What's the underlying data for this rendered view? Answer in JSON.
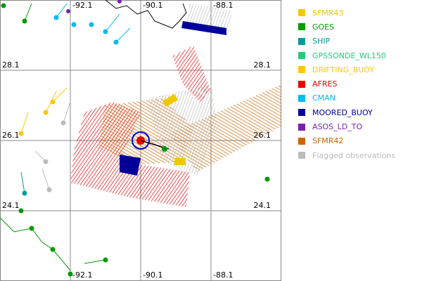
{
  "map": {
    "lat_labels": [
      "28.1",
      "26.1",
      "24.1"
    ],
    "lon_labels_top": [
      "-92.1",
      "-90.1",
      "-88.1"
    ],
    "lon_labels_bottom": [
      "-92.1",
      "-90.1",
      "-88.1"
    ],
    "legend": [
      {
        "name": "SFMR43",
        "color": "#f0c800"
      },
      {
        "name": "GOES",
        "color": "#009900"
      },
      {
        "name": "SHIP",
        "color": "#009999"
      },
      {
        "name": "GPSSONDE_WL150",
        "color": "#22cc77"
      },
      {
        "name": "DRIFTING_BUOY",
        "color": "#ffc800"
      },
      {
        "name": "AFRES",
        "color": "#ee0000"
      },
      {
        "name": "CMAN",
        "color": "#00bbee"
      },
      {
        "name": "MOORED_BUOY",
        "color": "#000099"
      },
      {
        "name": "ASOS_LD_TO",
        "color": "#7722aa"
      },
      {
        "name": "SFMR42",
        "color": "#cc6600"
      },
      {
        "name": "Flagged observations",
        "color": "#bbbbbb"
      }
    ]
  }
}
